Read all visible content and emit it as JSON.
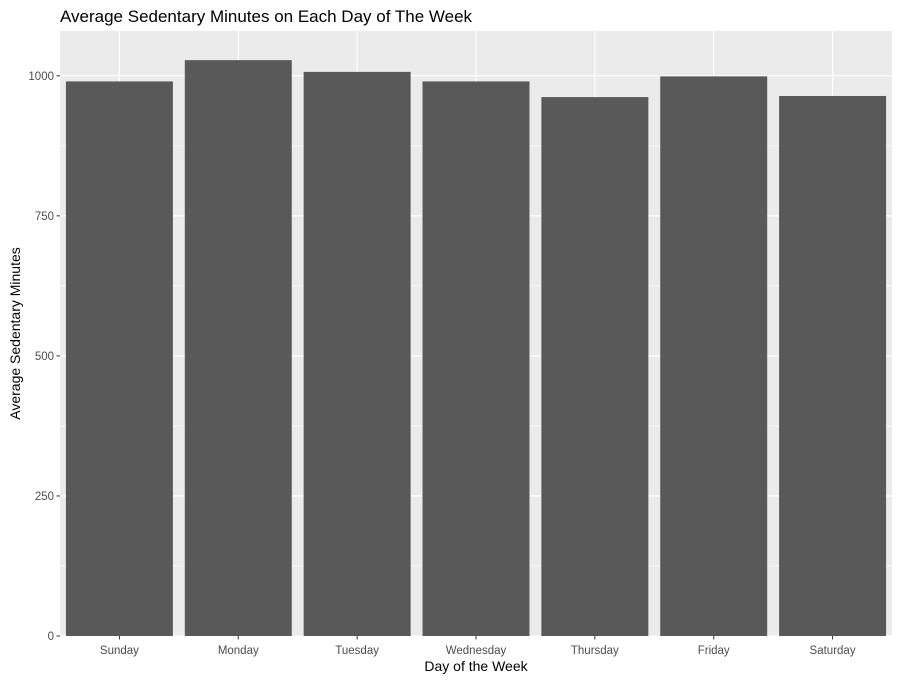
{
  "chart_data": {
    "type": "bar",
    "title": "Average Sedentary Minutes on Each Day of The Week",
    "xlabel": "Day of the Week",
    "ylabel": "Average Sedentary Minutes",
    "categories": [
      "Sunday",
      "Monday",
      "Tuesday",
      "Wednesday",
      "Thursday",
      "Friday",
      "Saturday"
    ],
    "values": [
      990,
      1028,
      1007,
      990,
      962,
      999,
      964
    ],
    "ylim": [
      0,
      1080
    ],
    "yticks": [
      0,
      250,
      500,
      750,
      1000
    ],
    "grid": true,
    "legend": "none",
    "colors": {
      "bar": "#595959",
      "panel_background": "#ebebeb",
      "grid": "#ffffff"
    }
  }
}
